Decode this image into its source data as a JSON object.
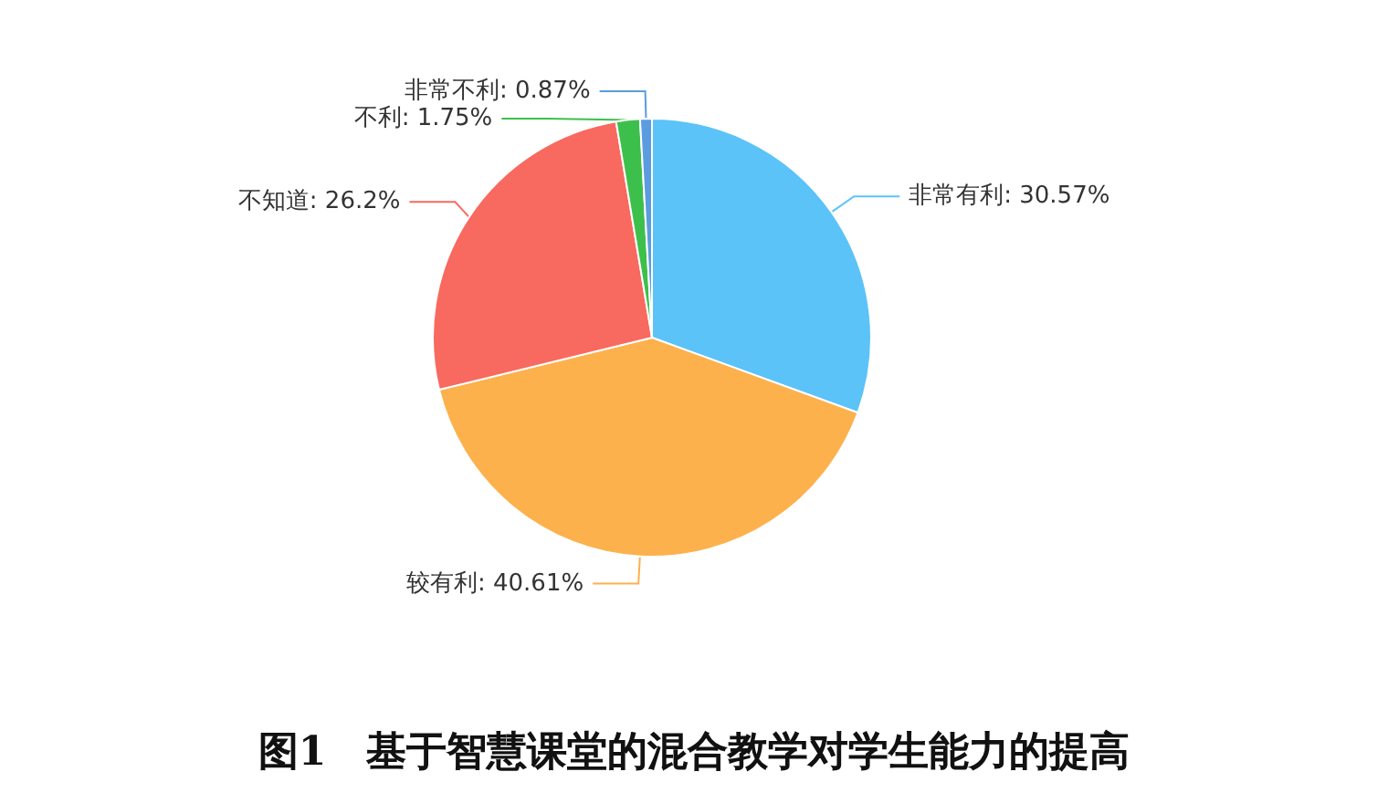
{
  "chart_data": {
    "type": "pie",
    "title": "图1　基于智慧课堂的混合教学对学生能力的提高",
    "categories": [
      "非常有利",
      "较有利",
      "不知道",
      "不利",
      "非常不利"
    ],
    "values": [
      30.57,
      40.61,
      26.2,
      1.75,
      0.87
    ],
    "value_labels": [
      "30.57%",
      "40.61%",
      "26.2%",
      "1.75%",
      "0.87%"
    ],
    "colors": [
      "#5bc3f8",
      "#fdb14c",
      "#f8695f",
      "#3dc04b",
      "#5b9ce0"
    ],
    "legend": false
  }
}
